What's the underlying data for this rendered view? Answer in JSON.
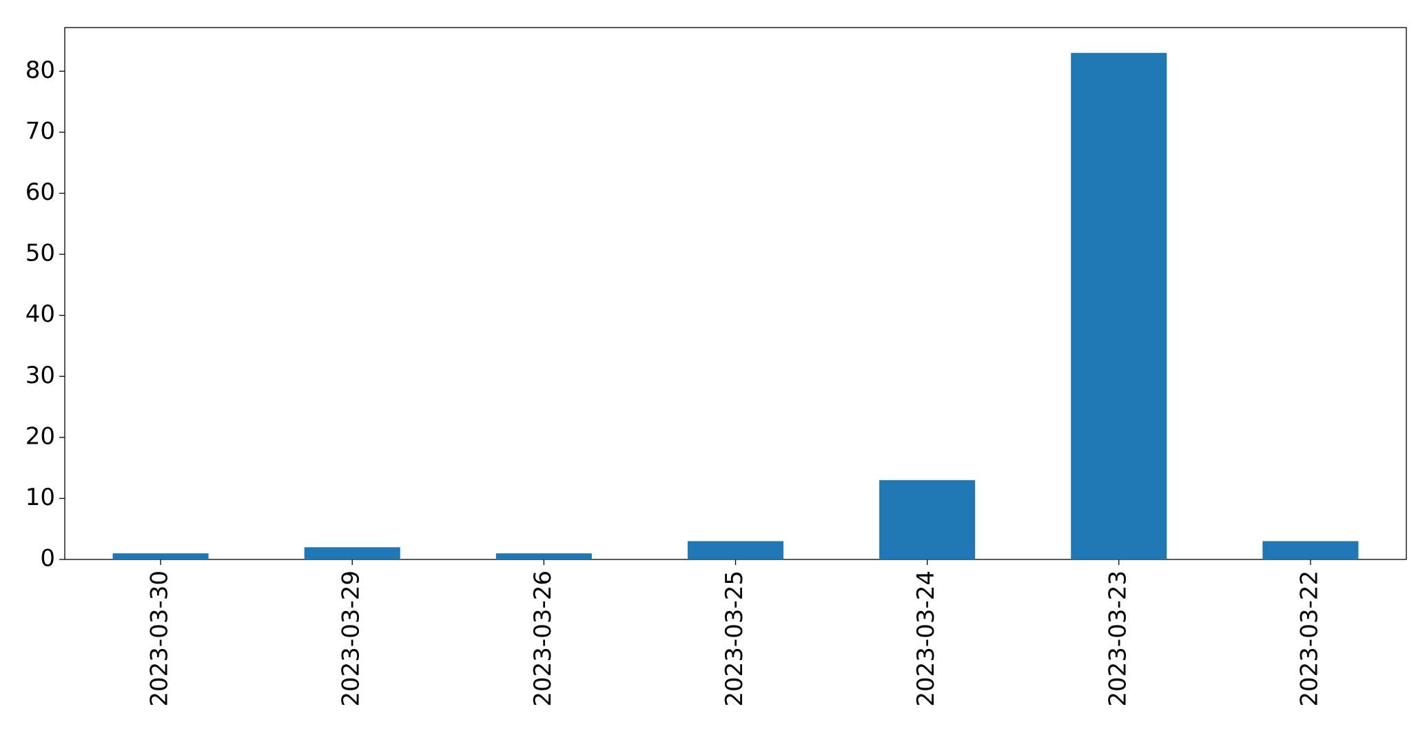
{
  "chart_data": {
    "type": "bar",
    "categories": [
      "2023-03-30",
      "2023-03-29",
      "2023-03-26",
      "2023-03-25",
      "2023-03-24",
      "2023-03-23",
      "2023-03-22"
    ],
    "values": [
      1,
      2,
      1,
      3,
      13,
      83,
      3
    ],
    "color": "#1f77b4",
    "ylim": [
      0,
      87.15
    ],
    "yticks": [
      0,
      10,
      20,
      30,
      40,
      50,
      60,
      70,
      80
    ],
    "grid": false
  }
}
